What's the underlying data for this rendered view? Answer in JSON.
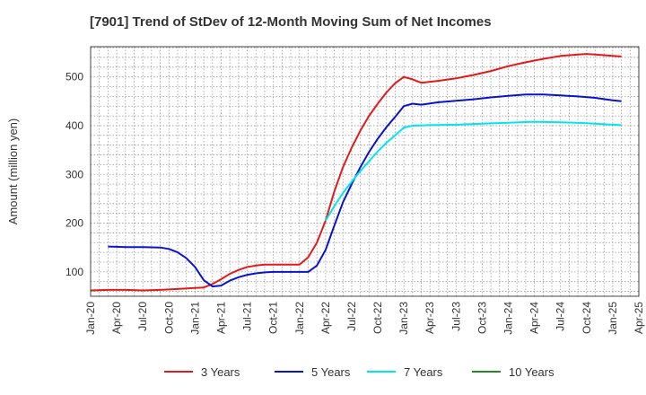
{
  "chart_data": {
    "type": "line",
    "title": "[7901]  Trend of StDev of 12-Month Moving Sum of Net Incomes",
    "xlabel": "",
    "ylabel": "Amount (million yen)",
    "ylim": [
      50,
      562
    ],
    "yticks": [
      100,
      200,
      300,
      400,
      500
    ],
    "xlim": [
      "2020-01",
      "2025-04"
    ],
    "xticks": [
      "Jan-20",
      "Apr-20",
      "Jul-20",
      "Oct-20",
      "Jan-21",
      "Apr-21",
      "Jul-21",
      "Oct-21",
      "Jan-22",
      "Apr-22",
      "Jul-22",
      "Oct-22",
      "Jan-23",
      "Apr-23",
      "Jul-23",
      "Oct-23",
      "Jan-24",
      "Apr-24",
      "Jul-24",
      "Oct-24",
      "Jan-25",
      "Apr-25"
    ],
    "grid": true,
    "legend_position": "bottom",
    "series": [
      {
        "name": "3 Years",
        "color": "#e31a1c",
        "points": [
          [
            "2020-01",
            62
          ],
          [
            "2020-03",
            63
          ],
          [
            "2020-05",
            63
          ],
          [
            "2020-07",
            62
          ],
          [
            "2020-09",
            63
          ],
          [
            "2020-11",
            65
          ],
          [
            "2021-01",
            67
          ],
          [
            "2021-02",
            68
          ],
          [
            "2021-03",
            75
          ],
          [
            "2021-04",
            85
          ],
          [
            "2021-05",
            96
          ],
          [
            "2021-06",
            104
          ],
          [
            "2021-07",
            110
          ],
          [
            "2021-08",
            113
          ],
          [
            "2021-09",
            115
          ],
          [
            "2021-10",
            115
          ],
          [
            "2021-11",
            115
          ],
          [
            "2021-12",
            115
          ],
          [
            "2022-01",
            115
          ],
          [
            "2022-02",
            130
          ],
          [
            "2022-03",
            160
          ],
          [
            "2022-04",
            205
          ],
          [
            "2022-05",
            265
          ],
          [
            "2022-06",
            315
          ],
          [
            "2022-07",
            355
          ],
          [
            "2022-08",
            390
          ],
          [
            "2022-09",
            420
          ],
          [
            "2022-10",
            445
          ],
          [
            "2022-11",
            468
          ],
          [
            "2022-12",
            487
          ],
          [
            "2023-01",
            500
          ],
          [
            "2023-02",
            495
          ],
          [
            "2023-03",
            488
          ],
          [
            "2023-04",
            490
          ],
          [
            "2023-05",
            492
          ],
          [
            "2023-07",
            497
          ],
          [
            "2023-09",
            504
          ],
          [
            "2023-11",
            512
          ],
          [
            "2024-01",
            522
          ],
          [
            "2024-03",
            530
          ],
          [
            "2024-05",
            537
          ],
          [
            "2024-07",
            543
          ],
          [
            "2024-09",
            546
          ],
          [
            "2024-10",
            547
          ],
          [
            "2024-11",
            546
          ],
          [
            "2025-01",
            543
          ],
          [
            "2025-02",
            542
          ]
        ]
      },
      {
        "name": "5 Years",
        "color": "#0a14c8",
        "points": [
          [
            "2020-03",
            152
          ],
          [
            "2020-05",
            151
          ],
          [
            "2020-07",
            151
          ],
          [
            "2020-09",
            150
          ],
          [
            "2020-10",
            147
          ],
          [
            "2020-11",
            140
          ],
          [
            "2020-12",
            128
          ],
          [
            "2021-01",
            110
          ],
          [
            "2021-02",
            83
          ],
          [
            "2021-03",
            70
          ],
          [
            "2021-04",
            72
          ],
          [
            "2021-05",
            82
          ],
          [
            "2021-06",
            89
          ],
          [
            "2021-07",
            94
          ],
          [
            "2021-08",
            97
          ],
          [
            "2021-09",
            99
          ],
          [
            "2021-10",
            100
          ],
          [
            "2021-11",
            100
          ],
          [
            "2022-01",
            100
          ],
          [
            "2022-02",
            100
          ],
          [
            "2022-03",
            113
          ],
          [
            "2022-04",
            145
          ],
          [
            "2022-05",
            195
          ],
          [
            "2022-06",
            243
          ],
          [
            "2022-07",
            280
          ],
          [
            "2022-08",
            315
          ],
          [
            "2022-09",
            346
          ],
          [
            "2022-10",
            373
          ],
          [
            "2022-11",
            397
          ],
          [
            "2022-12",
            418
          ],
          [
            "2023-01",
            440
          ],
          [
            "2023-02",
            445
          ],
          [
            "2023-03",
            443
          ],
          [
            "2023-05",
            448
          ],
          [
            "2023-07",
            451
          ],
          [
            "2023-09",
            454
          ],
          [
            "2023-11",
            458
          ],
          [
            "2024-01",
            461
          ],
          [
            "2024-03",
            464
          ],
          [
            "2024-05",
            464
          ],
          [
            "2024-07",
            462
          ],
          [
            "2024-09",
            460
          ],
          [
            "2024-11",
            457
          ],
          [
            "2025-01",
            452
          ],
          [
            "2025-02",
            450
          ]
        ]
      },
      {
        "name": "7 Years",
        "color": "#00e5ee",
        "points": [
          [
            "2022-04",
            205
          ],
          [
            "2022-05",
            235
          ],
          [
            "2022-06",
            262
          ],
          [
            "2022-07",
            285
          ],
          [
            "2022-08",
            307
          ],
          [
            "2022-09",
            327
          ],
          [
            "2022-10",
            347
          ],
          [
            "2022-11",
            365
          ],
          [
            "2022-12",
            380
          ],
          [
            "2023-01",
            396
          ],
          [
            "2023-02",
            400
          ],
          [
            "2023-04",
            401
          ],
          [
            "2023-07",
            402
          ],
          [
            "2023-10",
            404
          ],
          [
            "2024-01",
            406
          ],
          [
            "2024-04",
            408
          ],
          [
            "2024-07",
            407
          ],
          [
            "2024-10",
            405
          ],
          [
            "2025-01",
            402
          ],
          [
            "2025-02",
            401
          ]
        ]
      },
      {
        "name": "10 Years",
        "color": "#1e8c1e",
        "points": []
      }
    ]
  }
}
